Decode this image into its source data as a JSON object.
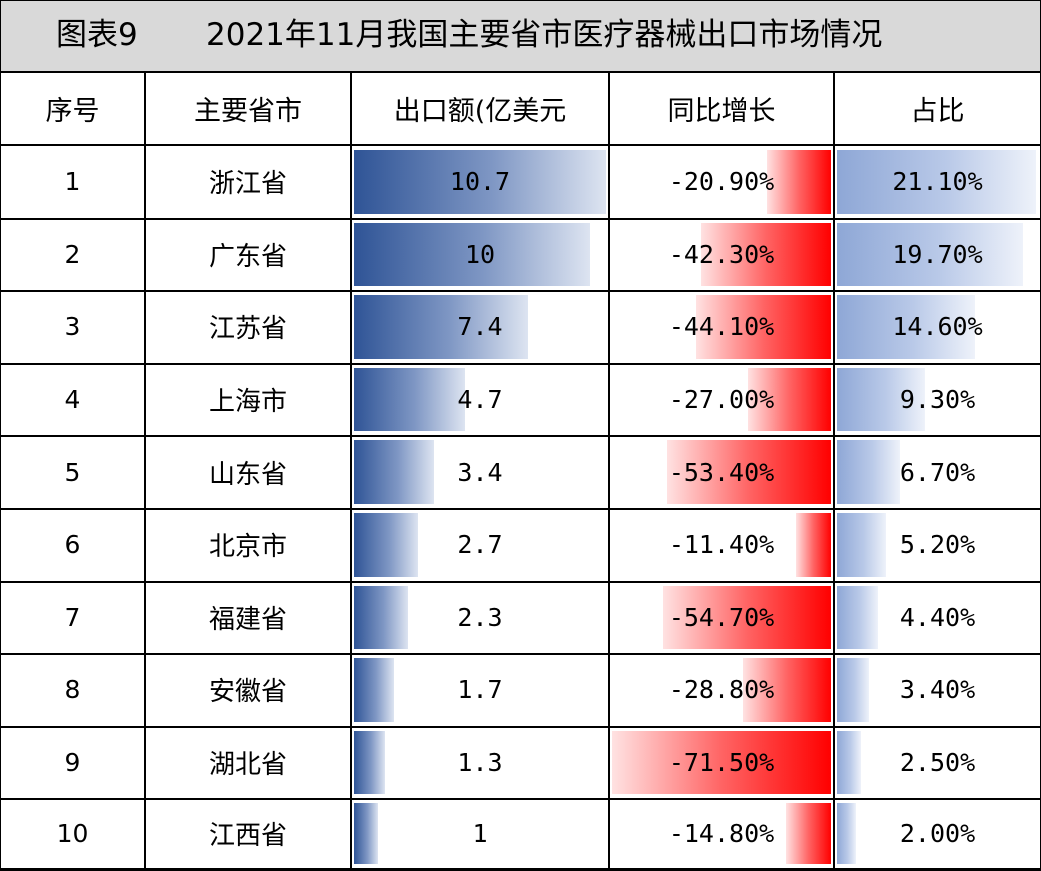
{
  "title": {
    "label": "图表9",
    "text": "2021年11月我国主要省市医疗器械出口市场情况"
  },
  "chart_data": {
    "type": "table",
    "columns": [
      "序号",
      "主要省市",
      "出口额(亿美元",
      "同比增长",
      "占比"
    ],
    "rows": [
      {
        "index": "1",
        "province": "浙江省",
        "export": 10.7,
        "export_label": "10.7",
        "growth": -20.9,
        "growth_label": "-20.90%",
        "share": 21.1,
        "share_label": "21.10%"
      },
      {
        "index": "2",
        "province": "广东省",
        "export": 10,
        "export_label": "10",
        "growth": -42.3,
        "growth_label": "-42.30%",
        "share": 19.7,
        "share_label": "19.70%"
      },
      {
        "index": "3",
        "province": "江苏省",
        "export": 7.4,
        "export_label": "7.4",
        "growth": -44.1,
        "growth_label": "-44.10%",
        "share": 14.6,
        "share_label": "14.60%"
      },
      {
        "index": "4",
        "province": "上海市",
        "export": 4.7,
        "export_label": "4.7",
        "growth": -27.0,
        "growth_label": "-27.00%",
        "share": 9.3,
        "share_label": "9.30%"
      },
      {
        "index": "5",
        "province": "山东省",
        "export": 3.4,
        "export_label": "3.4",
        "growth": -53.4,
        "growth_label": "-53.40%",
        "share": 6.7,
        "share_label": "6.70%"
      },
      {
        "index": "6",
        "province": "北京市",
        "export": 2.7,
        "export_label": "2.7",
        "growth": -11.4,
        "growth_label": "-11.40%",
        "share": 5.2,
        "share_label": "5.20%"
      },
      {
        "index": "7",
        "province": "福建省",
        "export": 2.3,
        "export_label": "2.3",
        "growth": -54.7,
        "growth_label": "-54.70%",
        "share": 4.4,
        "share_label": "4.40%"
      },
      {
        "index": "8",
        "province": "安徽省",
        "export": 1.7,
        "export_label": "1.7",
        "growth": -28.8,
        "growth_label": "-28.80%",
        "share": 3.4,
        "share_label": "3.40%"
      },
      {
        "index": "9",
        "province": "湖北省",
        "export": 1.3,
        "export_label": "1.3",
        "growth": -71.5,
        "growth_label": "-71.50%",
        "share": 2.5,
        "share_label": "2.50%"
      },
      {
        "index": "10",
        "province": "江西省",
        "export": 1,
        "export_label": "1",
        "growth": -14.8,
        "growth_label": "-14.80%",
        "share": 2.0,
        "share_label": "2.00%"
      }
    ],
    "bar_colors": {
      "export": "#2f5496",
      "growth": "#ff0000",
      "share": "#8ea7d6"
    }
  }
}
